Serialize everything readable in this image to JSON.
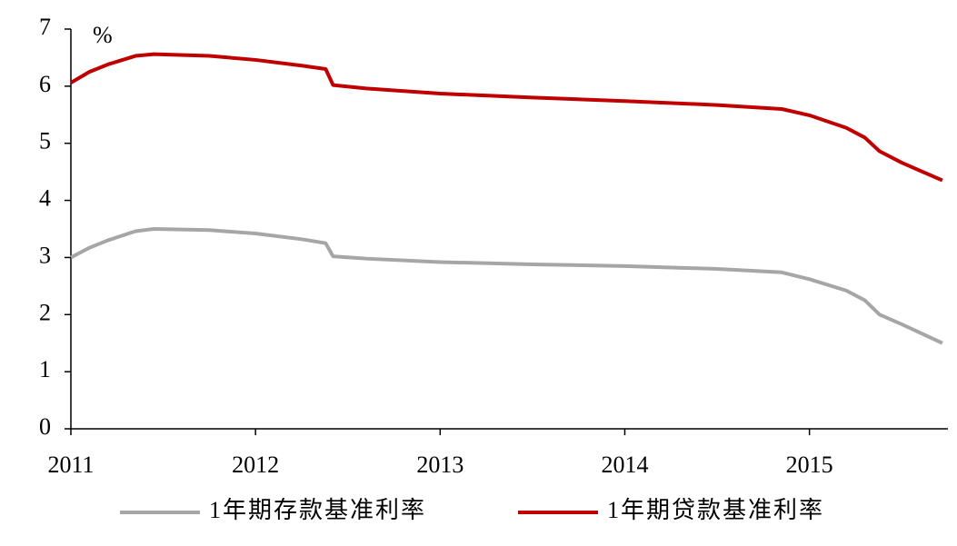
{
  "chart_data": {
    "type": "line",
    "unit_label": "%",
    "xlim": [
      2011,
      2015.75
    ],
    "xticks": [
      2011,
      2012,
      2013,
      2014,
      2015
    ],
    "ylim": [
      0,
      7
    ],
    "yticks": [
      0,
      1,
      2,
      3,
      4,
      5,
      6,
      7
    ],
    "grid": false,
    "legend": "bottom",
    "series": [
      {
        "name": "1年期存款基准利率",
        "color": "#a6a6a6",
        "x": [
          2011.0,
          2011.1,
          2011.2,
          2011.35,
          2011.45,
          2011.75,
          2012.0,
          2012.25,
          2012.38,
          2012.42,
          2012.6,
          2013.0,
          2013.5,
          2014.0,
          2014.5,
          2014.85,
          2015.0,
          2015.2,
          2015.3,
          2015.38,
          2015.5,
          2015.72
        ],
        "values": [
          3.0,
          3.17,
          3.3,
          3.46,
          3.5,
          3.48,
          3.42,
          3.32,
          3.25,
          3.02,
          2.98,
          2.92,
          2.88,
          2.85,
          2.8,
          2.74,
          2.62,
          2.42,
          2.25,
          2.0,
          1.83,
          1.5
        ]
      },
      {
        "name": "1年期贷款基准利率",
        "color": "#c00000",
        "x": [
          2011.0,
          2011.1,
          2011.2,
          2011.35,
          2011.45,
          2011.75,
          2012.0,
          2012.25,
          2012.38,
          2012.42,
          2012.6,
          2013.0,
          2013.5,
          2014.0,
          2014.5,
          2014.85,
          2015.0,
          2015.2,
          2015.3,
          2015.38,
          2015.5,
          2015.72
        ],
        "values": [
          6.06,
          6.25,
          6.38,
          6.53,
          6.56,
          6.53,
          6.46,
          6.36,
          6.3,
          6.02,
          5.96,
          5.87,
          5.8,
          5.74,
          5.67,
          5.6,
          5.49,
          5.27,
          5.1,
          4.86,
          4.66,
          4.35
        ]
      }
    ]
  }
}
